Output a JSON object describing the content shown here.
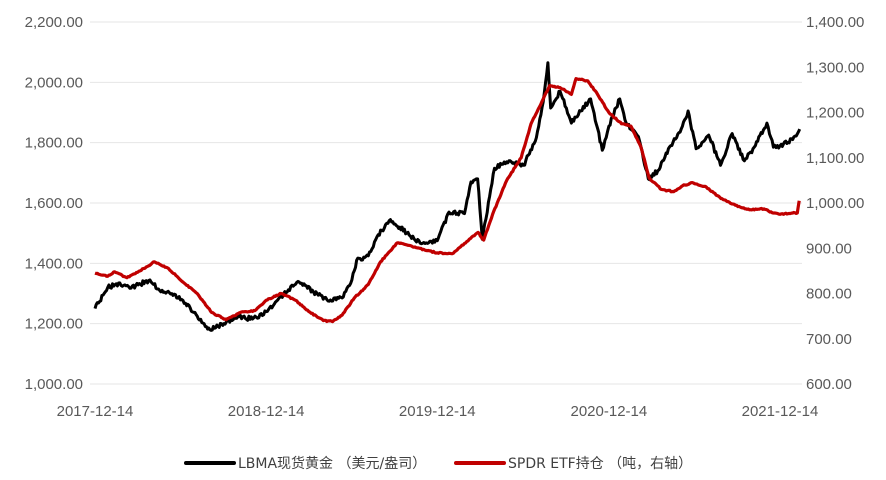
{
  "chart_data": {
    "type": "line",
    "x_ticks": [
      "2017-12-14",
      "2018-12-14",
      "2019-12-14",
      "2020-12-14",
      "2021-12-14"
    ],
    "x_range": [
      "2017-12-14",
      "2021-12-14"
    ],
    "y_left": {
      "ylim": [
        1000,
        2200
      ],
      "ticks": [
        "1,000.00",
        "1,200.00",
        "1,400.00",
        "1,600.00",
        "1,800.00",
        "2,000.00",
        "2,200.00"
      ]
    },
    "y_right": {
      "ylim": [
        600,
        1400
      ],
      "ticks": [
        "600.00",
        "700.00",
        "800.00",
        "900.00",
        "1,000.00",
        "1,100.00",
        "1,200.00",
        "1,300.00",
        "1,400.00"
      ]
    },
    "grid": true,
    "legend_position": "bottom",
    "series": [
      {
        "name": "LBMA现货黄金 （美元/盎司）",
        "axis": "left",
        "color": "#000000",
        "points": [
          [
            "2017-12-14",
            1250
          ],
          [
            "2018-01-10",
            1320
          ],
          [
            "2018-02-05",
            1335
          ],
          [
            "2018-03-01",
            1318
          ],
          [
            "2018-04-10",
            1345
          ],
          [
            "2018-05-01",
            1310
          ],
          [
            "2018-06-01",
            1298
          ],
          [
            "2018-06-25",
            1268
          ],
          [
            "2018-07-20",
            1225
          ],
          [
            "2018-08-16",
            1180
          ],
          [
            "2018-09-15",
            1200
          ],
          [
            "2018-10-15",
            1225
          ],
          [
            "2018-11-15",
            1215
          ],
          [
            "2018-12-14",
            1240
          ],
          [
            "2019-01-15",
            1290
          ],
          [
            "2019-02-20",
            1340
          ],
          [
            "2019-03-25",
            1305
          ],
          [
            "2019-04-25",
            1275
          ],
          [
            "2019-05-25",
            1285
          ],
          [
            "2019-06-15",
            1345
          ],
          [
            "2019-06-25",
            1410
          ],
          [
            "2019-07-20",
            1425
          ],
          [
            "2019-08-10",
            1495
          ],
          [
            "2019-09-05",
            1545
          ],
          [
            "2019-10-10",
            1500
          ],
          [
            "2019-11-10",
            1465
          ],
          [
            "2019-12-14",
            1475
          ],
          [
            "2020-01-08",
            1570
          ],
          [
            "2020-02-10",
            1565
          ],
          [
            "2020-02-24",
            1670
          ],
          [
            "2020-03-09",
            1680
          ],
          [
            "2020-03-19",
            1480
          ],
          [
            "2020-04-14",
            1715
          ],
          [
            "2020-05-15",
            1740
          ],
          [
            "2020-06-15",
            1725
          ],
          [
            "2020-07-10",
            1805
          ],
          [
            "2020-07-27",
            1935
          ],
          [
            "2020-08-06",
            2065
          ],
          [
            "2020-08-12",
            1915
          ],
          [
            "2020-09-01",
            1970
          ],
          [
            "2020-09-25",
            1865
          ],
          [
            "2020-10-15",
            1905
          ],
          [
            "2020-11-05",
            1945
          ],
          [
            "2020-11-30",
            1775
          ],
          [
            "2020-12-14",
            1855
          ],
          [
            "2021-01-06",
            1945
          ],
          [
            "2021-01-20",
            1865
          ],
          [
            "2021-02-15",
            1820
          ],
          [
            "2021-03-08",
            1680
          ],
          [
            "2021-03-31",
            1710
          ],
          [
            "2021-04-20",
            1780
          ],
          [
            "2021-05-15",
            1835
          ],
          [
            "2021-06-01",
            1905
          ],
          [
            "2021-06-18",
            1780
          ],
          [
            "2021-07-15",
            1825
          ],
          [
            "2021-08-09",
            1725
          ],
          [
            "2021-09-03",
            1830
          ],
          [
            "2021-09-29",
            1740
          ],
          [
            "2021-10-20",
            1785
          ],
          [
            "2021-11-16",
            1865
          ],
          [
            "2021-11-30",
            1785
          ],
          [
            "2021-12-14",
            1790
          ],
          [
            "2022-01-10",
            1810
          ],
          [
            "2022-01-25",
            1845
          ]
        ]
      },
      {
        "name": "SPDR ETF持仓 （吨，右轴）",
        "axis": "right",
        "color": "#c00000",
        "points": [
          [
            "2017-12-14",
            845
          ],
          [
            "2018-01-10",
            838
          ],
          [
            "2018-01-25",
            848
          ],
          [
            "2018-02-20",
            835
          ],
          [
            "2018-03-20",
            850
          ],
          [
            "2018-04-20",
            870
          ],
          [
            "2018-05-20",
            855
          ],
          [
            "2018-06-20",
            825
          ],
          [
            "2018-07-20",
            800
          ],
          [
            "2018-08-20",
            758
          ],
          [
            "2018-09-20",
            742
          ],
          [
            "2018-10-20",
            758
          ],
          [
            "2018-11-20",
            762
          ],
          [
            "2018-12-14",
            785
          ],
          [
            "2019-01-15",
            800
          ],
          [
            "2019-02-15",
            785
          ],
          [
            "2019-03-15",
            760
          ],
          [
            "2019-04-15",
            740
          ],
          [
            "2019-05-05",
            738
          ],
          [
            "2019-05-25",
            752
          ],
          [
            "2019-06-20",
            790
          ],
          [
            "2019-07-20",
            820
          ],
          [
            "2019-08-15",
            870
          ],
          [
            "2019-09-20",
            912
          ],
          [
            "2019-10-20",
            905
          ],
          [
            "2019-11-20",
            895
          ],
          [
            "2019-12-14",
            890
          ],
          [
            "2020-01-15",
            888
          ],
          [
            "2020-02-15",
            915
          ],
          [
            "2020-03-10",
            935
          ],
          [
            "2020-03-22",
            918
          ],
          [
            "2020-04-10",
            975
          ],
          [
            "2020-05-10",
            1050
          ],
          [
            "2020-06-10",
            1100
          ],
          [
            "2020-07-01",
            1175
          ],
          [
            "2020-07-27",
            1230
          ],
          [
            "2020-08-10",
            1260
          ],
          [
            "2020-09-01",
            1255
          ],
          [
            "2020-09-25",
            1240
          ],
          [
            "2020-10-05",
            1275
          ],
          [
            "2020-10-30",
            1270
          ],
          [
            "2020-11-20",
            1240
          ],
          [
            "2020-12-14",
            1200
          ],
          [
            "2021-01-10",
            1175
          ],
          [
            "2021-01-30",
            1170
          ],
          [
            "2021-02-20",
            1125
          ],
          [
            "2021-03-10",
            1055
          ],
          [
            "2021-04-05",
            1030
          ],
          [
            "2021-05-01",
            1025
          ],
          [
            "2021-05-20",
            1038
          ],
          [
            "2021-06-10",
            1045
          ],
          [
            "2021-07-10",
            1035
          ],
          [
            "2021-08-10",
            1010
          ],
          [
            "2021-09-10",
            995
          ],
          [
            "2021-10-10",
            985
          ],
          [
            "2021-11-10",
            987
          ],
          [
            "2021-11-30",
            978
          ],
          [
            "2021-12-14",
            975
          ],
          [
            "2022-01-10",
            978
          ],
          [
            "2022-01-20",
            978
          ],
          [
            "2022-01-24",
            1005
          ]
        ]
      }
    ]
  }
}
